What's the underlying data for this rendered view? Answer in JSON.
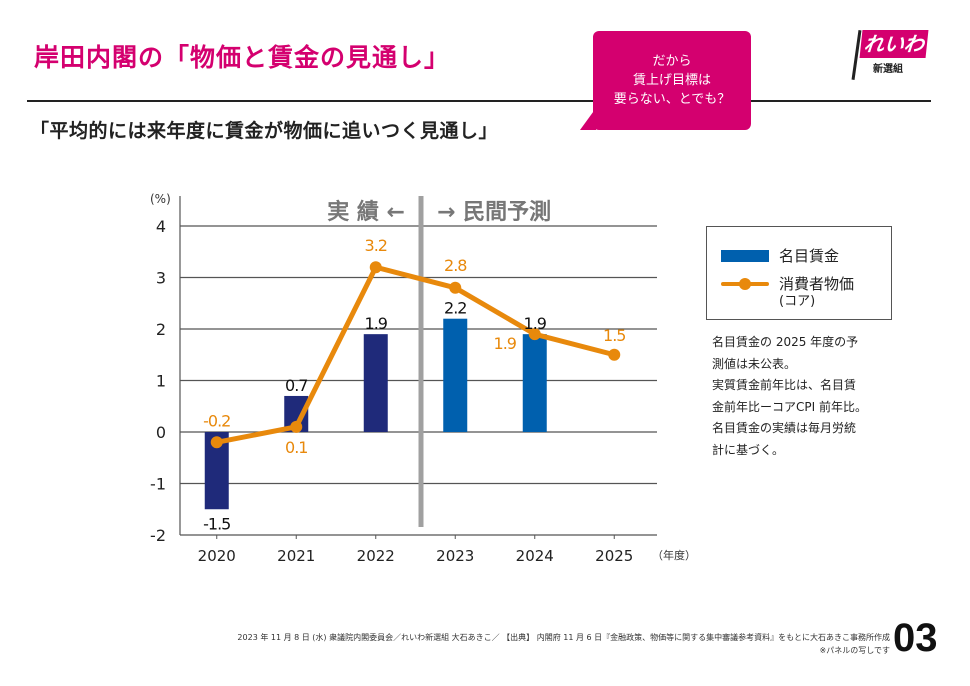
{
  "header": {
    "title": "岸田内閣の「物価と賃金の見通し」",
    "subtitle": "「平均的には来年度に賃金が物価に追いつく見通し」",
    "bubble_lines": [
      "だから",
      "賃上げ目標は",
      "要らない、とでも？"
    ],
    "logo_main": "れいわ",
    "logo_sub": "新選組"
  },
  "colors": {
    "accent": "#d4006f",
    "wage_actual": "#1f2a7a",
    "wage_forecast": "#0060ae",
    "cpi": "#e8890c",
    "divider": "#a0a0a0",
    "section_label": "#777777"
  },
  "chart_data": {
    "type": "bar",
    "title": "",
    "xlabel": "（年度）",
    "ylabel": "(%)",
    "ylim": [
      -2,
      4
    ],
    "yticks": [
      4,
      3,
      2,
      1,
      0,
      -1,
      -2
    ],
    "ytick_labels": [
      "4",
      "3",
      "2",
      "1",
      "0",
      "-1",
      "-2"
    ],
    "grid": true,
    "categories": [
      "2020",
      "2021",
      "2022",
      "2023",
      "2024",
      "2025"
    ],
    "section_labels": {
      "actual": "実 績 ←",
      "forecast": "→ 民間予測"
    },
    "section_split_after_index": 2,
    "series": [
      {
        "name": "名目賃金",
        "type": "bar",
        "values": [
          -1.5,
          0.7,
          1.9,
          2.2,
          1.9,
          null
        ],
        "labels": [
          "-1.5",
          "0.7",
          "1.9",
          "2.2",
          "1.9",
          ""
        ]
      },
      {
        "name": "消費者物価 (コア)",
        "type": "line",
        "values": [
          -0.2,
          0.1,
          3.2,
          2.8,
          1.9,
          1.5
        ],
        "labels": [
          "-0.2",
          "0.1",
          "3.2",
          "2.8",
          "1.9",
          "1.5"
        ]
      }
    ],
    "legend": {
      "position": "right",
      "items": [
        "名目賃金",
        "消費者物価"
      ],
      "sub": "(コア)"
    }
  },
  "notes": [
    "名目賃金の 2025 年度の予",
    "測値は未公表。",
    "実質賃金前年比は、名目賃",
    "金前年比ーコアCPI 前年比。",
    "名目賃金の実績は毎月労統",
    "計に基づく。"
  ],
  "footer": {
    "line1": "2023 年 11 月 8 日 (水) 衆議院内閣委員会／れいわ新選組  大石あきこ／ 【出典】 内閣府 11 月 6 日『金融政策、物価等に関する集中審議参考資料』をもとに大石あきこ事務所作成",
    "line2": "※パネルの写しです",
    "page_number": "03"
  }
}
